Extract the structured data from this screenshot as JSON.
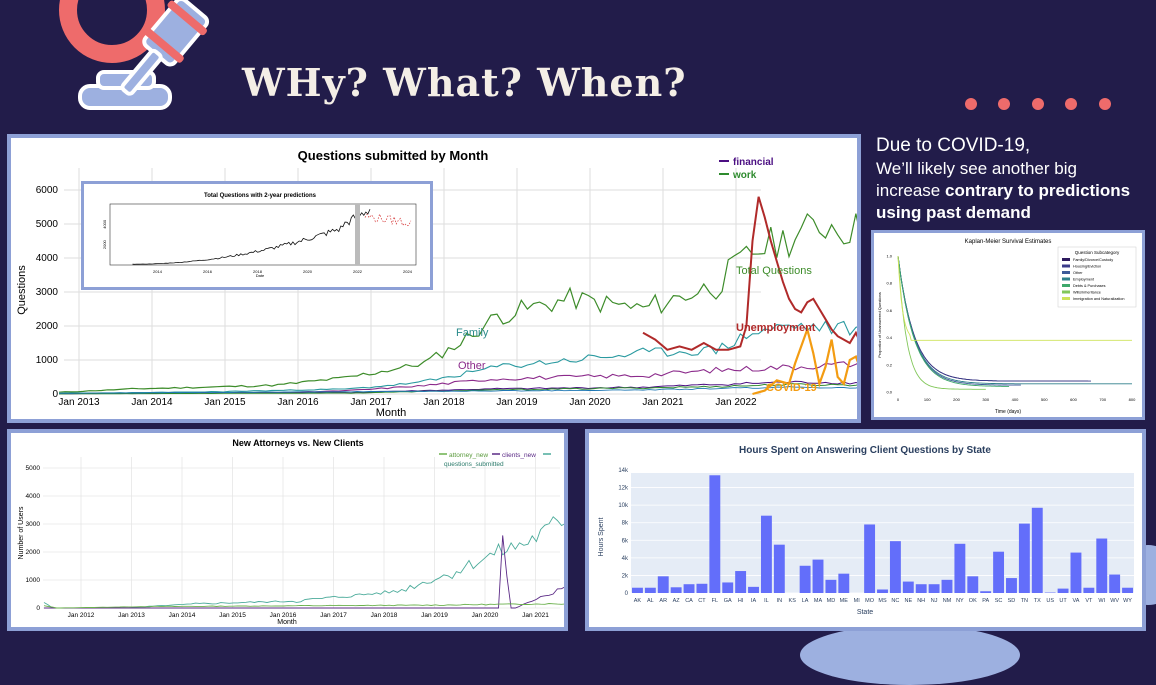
{
  "slide": {
    "title": "WHy? What? When?",
    "side_text_line1": "Due to COVID-19,",
    "side_text_line2": "We’ll likely see another big",
    "side_text_line3_normal": "increase ",
    "side_text_line3_bold": "contrary to predictions",
    "side_text_line4_bold": "using past demand",
    "accent": "#ee6b6b",
    "background": "#221c4a"
  },
  "chart1": {
    "title": "Questions submitted by Month",
    "xlabel": "Month",
    "ylabel": "Questions",
    "x_ticks": [
      "Jan 2013",
      "Jan 2014",
      "Jan 2015",
      "Jan 2016",
      "Jan 2017",
      "Jan 2018",
      "Jan 2019",
      "Jan 2020",
      "Jan 2021",
      "Jan 2022"
    ],
    "y_ticks": [
      "0",
      "1000",
      "2000",
      "3000",
      "4000",
      "5000",
      "6000"
    ],
    "legend": [
      "financial",
      "work"
    ],
    "labels": {
      "total": "Total Questions",
      "family": "Family",
      "other": "Other",
      "unemployment": "Unemployment",
      "covid": "COVID-19"
    }
  },
  "inset": {
    "title": "Total Questions with 2-year predictions",
    "xlabel": "Date",
    "x_ticks": [
      "2014",
      "2016",
      "2018",
      "2020",
      "2022",
      "2024"
    ],
    "y_ticks": [
      "2000",
      "4000"
    ]
  },
  "chart2": {
    "title": "Kaplan-Meier Survival Estimates",
    "legend_title": "Question Subcategory",
    "legend": [
      "Family/Divorce/Custody",
      "Housing/Eviction",
      "Other",
      "Employment",
      "Debts & Purchases",
      "Wills/Inheritance",
      "Immigration and Naturalization"
    ],
    "xlabel": "Time (days)",
    "ylabel": "Proportion of Unanswered Questions",
    "x_ticks": [
      "0",
      "100",
      "200",
      "300",
      "400",
      "500",
      "600",
      "700",
      "800"
    ],
    "y_ticks": [
      "0.0",
      "0.2",
      "0.4",
      "0.6",
      "0.8",
      "1.0"
    ]
  },
  "chart3": {
    "title": "New Attorneys vs. New Clients",
    "legend": [
      "attorney_new",
      "clients_new",
      "questions_submitted"
    ],
    "xlabel": "Month",
    "ylabel": "Number of Users",
    "x_ticks": [
      "Jan 2012",
      "Jan 2013",
      "Jan 2014",
      "Jan 2015",
      "Jan 2016",
      "Jan 2017",
      "Jan 2018",
      "Jan 2019",
      "Jan 2020",
      "Jan 2021"
    ],
    "y_ticks": [
      "0",
      "1000",
      "2000",
      "3000",
      "4000",
      "5000"
    ]
  },
  "chart_data": {
    "type": "bar",
    "title": "Hours Spent on Answering Client Questions by State",
    "xlabel": "State",
    "ylabel": "Hours Spent",
    "ylim": [
      0,
      14000
    ],
    "y_ticks": [
      "0",
      "2k",
      "4k",
      "6k",
      "8k",
      "10k",
      "12k",
      "14k"
    ],
    "categories": [
      "AK",
      "AL",
      "AR",
      "AZ",
      "CA",
      "CT",
      "FL",
      "GA",
      "HI",
      "IA",
      "IL",
      "IN",
      "KS",
      "LA",
      "MA",
      "MD",
      "ME",
      "MI",
      "MO",
      "MS",
      "NC",
      "NE",
      "NH",
      "NJ",
      "NM",
      "NY",
      "OK",
      "PA",
      "SC",
      "SD",
      "TN",
      "TX",
      "US",
      "UT",
      "VA",
      "VT",
      "WI",
      "WV",
      "WY"
    ],
    "values": [
      600,
      600,
      1900,
      650,
      1000,
      1050,
      13400,
      1200,
      2500,
      700,
      8800,
      5500,
      0,
      3100,
      3800,
      1500,
      2200,
      0,
      7800,
      400,
      5900,
      1300,
      1000,
      1000,
      1500,
      5600,
      1900,
      200,
      4700,
      1700,
      7900,
      9700,
      50,
      500,
      4600,
      600,
      6200,
      2100,
      600
    ],
    "bar_color": "#636efa"
  }
}
